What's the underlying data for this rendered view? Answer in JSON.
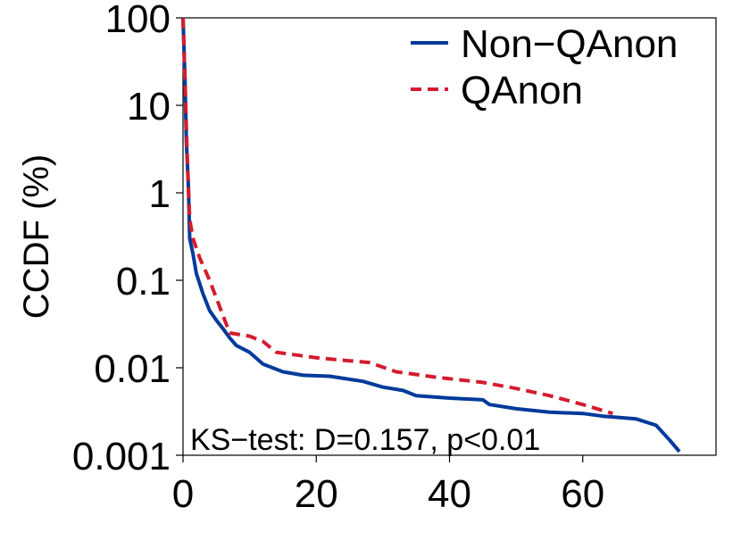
{
  "chart_data": {
    "type": "line",
    "title": "",
    "xlabel": "",
    "ylabel": "CCDF (%)",
    "xscale": "linear",
    "yscale": "log",
    "xlim": [
      0,
      80
    ],
    "ylim": [
      0.001,
      100
    ],
    "x_ticks": [
      0,
      20,
      40,
      60
    ],
    "x_tick_labels": [
      "0",
      "20",
      "40",
      "60"
    ],
    "y_ticks": [
      0.001,
      0.01,
      0.1,
      1,
      10,
      100
    ],
    "y_tick_labels": [
      "0.001",
      "0.01",
      "0.1",
      "1",
      "10",
      "100"
    ],
    "grid": false,
    "legend_position": "top-right",
    "annotation": "KS−test: D=0.157, p<0.01",
    "series": [
      {
        "name": "Non−QAnon",
        "color": "#003a9b",
        "dash": "solid",
        "points": [
          [
            0,
            100
          ],
          [
            0.3,
            20
          ],
          [
            0.5,
            4
          ],
          [
            0.8,
            1.2
          ],
          [
            1,
            0.3
          ],
          [
            1.5,
            0.2
          ],
          [
            2,
            0.12
          ],
          [
            3,
            0.07
          ],
          [
            4,
            0.045
          ],
          [
            5,
            0.035
          ],
          [
            6,
            0.028
          ],
          [
            7,
            0.022
          ],
          [
            8,
            0.018
          ],
          [
            10,
            0.015
          ],
          [
            12,
            0.011
          ],
          [
            15,
            0.009
          ],
          [
            18,
            0.0082
          ],
          [
            22,
            0.008
          ],
          [
            27,
            0.007
          ],
          [
            30,
            0.006
          ],
          [
            33,
            0.0055
          ],
          [
            35,
            0.0048
          ],
          [
            40,
            0.0045
          ],
          [
            45,
            0.0043
          ],
          [
            46,
            0.0038
          ],
          [
            50,
            0.0034
          ],
          [
            55,
            0.0031
          ],
          [
            60,
            0.003
          ],
          [
            63,
            0.0028
          ],
          [
            68,
            0.0026
          ],
          [
            71,
            0.0022
          ],
          [
            73,
            0.0015
          ],
          [
            74.5,
            0.0011
          ]
        ]
      },
      {
        "name": "QAnon",
        "color": "#d41c2f",
        "dash": "dashed",
        "points": [
          [
            0,
            100
          ],
          [
            0.3,
            20
          ],
          [
            0.6,
            3
          ],
          [
            1,
            0.5
          ],
          [
            1.5,
            0.3
          ],
          [
            2.5,
            0.18
          ],
          [
            4,
            0.1
          ],
          [
            5.5,
            0.05
          ],
          [
            7,
            0.025
          ],
          [
            10,
            0.023
          ],
          [
            12,
            0.02
          ],
          [
            14,
            0.015
          ],
          [
            17,
            0.014
          ],
          [
            20,
            0.013
          ],
          [
            25,
            0.012
          ],
          [
            28,
            0.0115
          ],
          [
            32,
            0.009
          ],
          [
            38,
            0.0078
          ],
          [
            45,
            0.0068
          ],
          [
            50,
            0.0058
          ],
          [
            55,
            0.0048
          ],
          [
            60,
            0.0038
          ],
          [
            64.5,
            0.003
          ]
        ]
      }
    ]
  }
}
